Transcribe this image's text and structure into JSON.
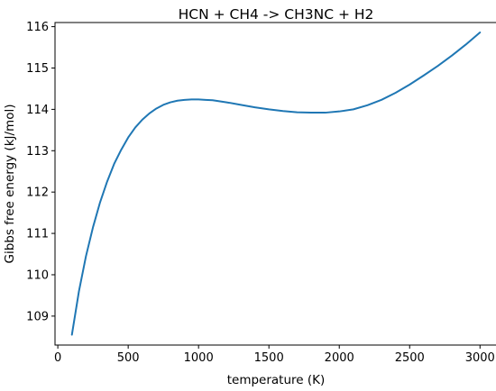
{
  "chart_data": {
    "type": "line",
    "title": "HCN + CH4 -> CH3NC + H2",
    "xlabel": "temperature (K)",
    "ylabel": "Gibbs free energy (kJ/mol)",
    "xlim": [
      -20,
      3120
    ],
    "ylim": [
      108.3,
      116.1
    ],
    "xticks": [
      0,
      500,
      1000,
      1500,
      2000,
      2500,
      3000
    ],
    "yticks": [
      109,
      110,
      111,
      112,
      113,
      114,
      115,
      116
    ],
    "grid": false,
    "legend": "none",
    "series": [
      {
        "color": "#1f77b4",
        "x": [
          100,
          150,
          200,
          250,
          300,
          350,
          400,
          450,
          500,
          550,
          600,
          650,
          700,
          750,
          800,
          850,
          900,
          950,
          1000,
          1050,
          1100,
          1200,
          1300,
          1400,
          1500,
          1600,
          1700,
          1800,
          1900,
          2000,
          2100,
          2200,
          2300,
          2400,
          2500,
          2600,
          2700,
          2800,
          2900,
          3000
        ],
        "y": [
          108.55,
          109.6,
          110.45,
          111.15,
          111.75,
          112.25,
          112.68,
          113.02,
          113.32,
          113.56,
          113.75,
          113.9,
          114.02,
          114.11,
          114.17,
          114.21,
          114.23,
          114.24,
          114.24,
          114.23,
          114.22,
          114.17,
          114.11,
          114.05,
          114.0,
          113.96,
          113.93,
          113.92,
          113.92,
          113.95,
          114.0,
          114.1,
          114.23,
          114.4,
          114.6,
          114.82,
          115.05,
          115.3,
          115.57,
          115.86
        ]
      }
    ]
  }
}
